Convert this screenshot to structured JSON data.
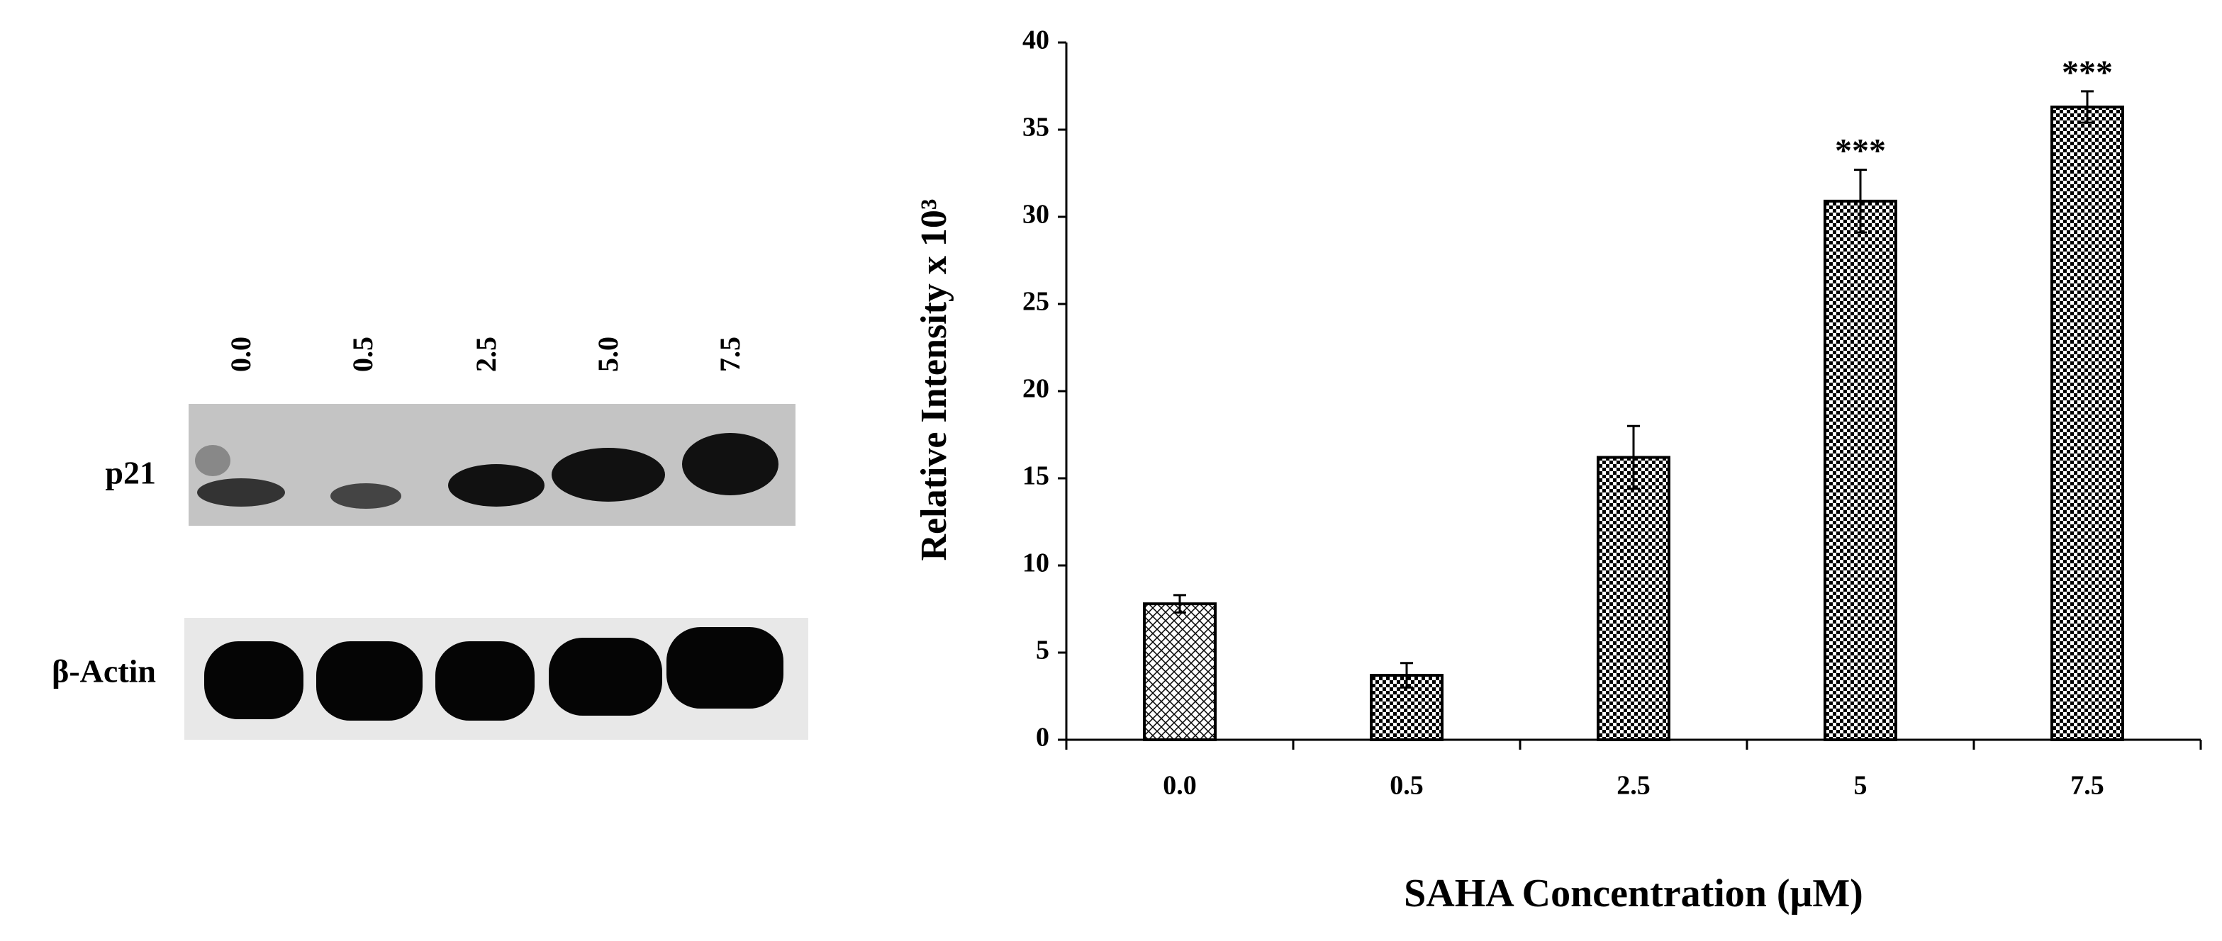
{
  "blot": {
    "lanes": [
      "0.0",
      "0.5",
      "2.5",
      "5.0",
      "7.5"
    ],
    "rows": [
      "p21",
      "β-Actin"
    ]
  },
  "chart_data": {
    "type": "bar",
    "x_label": "SAHA  Concentration (μM)",
    "y_label": "Relative Intensity x 10³",
    "categories": [
      "0.0",
      "0.5",
      "2.5",
      "5",
      "7.5"
    ],
    "values": [
      7.8,
      3.7,
      16.2,
      30.9,
      36.3
    ],
    "errors": [
      0.5,
      0.7,
      1.8,
      1.8,
      0.9
    ],
    "patterns": [
      "crosshatch",
      "checker",
      "checker",
      "checker",
      "checker"
    ],
    "color": "#000000",
    "annotations": [
      {
        "x": "5",
        "text": "***"
      },
      {
        "x": "7.5",
        "text": "***"
      }
    ],
    "ylim": [
      0,
      40
    ],
    "yticks": [
      0,
      5,
      10,
      15,
      20,
      25,
      30,
      35,
      40
    ],
    "grid": false
  }
}
